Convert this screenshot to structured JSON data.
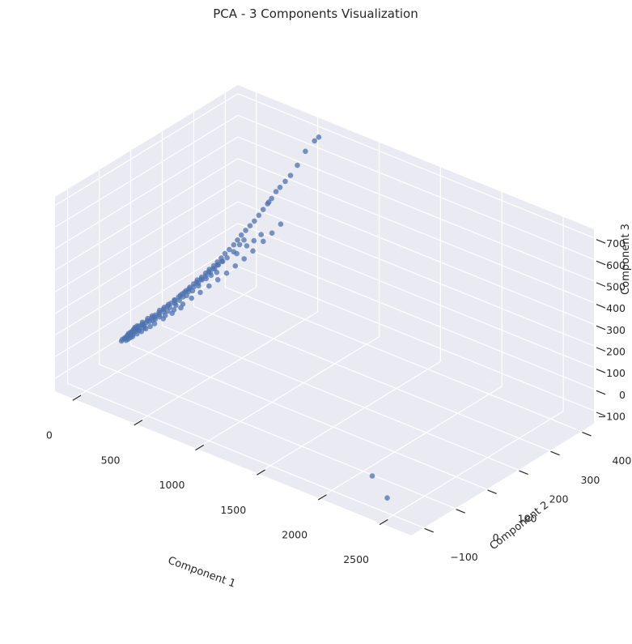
{
  "chart_data": {
    "type": "scatter",
    "projection": "3d",
    "title": "PCA - 3 Components Visualization",
    "xlabel": "Component 1",
    "ylabel": "Component 2",
    "zlabel": "Component 3",
    "xlim": [
      -150,
      2750
    ],
    "ylim": [
      -140,
      440
    ],
    "zlim": [
      -160,
      740
    ],
    "xticks": [
      0,
      500,
      1000,
      1500,
      2000,
      2500
    ],
    "yticks": [
      -100,
      0,
      100,
      200,
      300,
      400
    ],
    "zticks": [
      -100,
      0,
      100,
      200,
      300,
      400,
      500,
      600,
      700
    ],
    "xtick_labels": [
      "0",
      "500",
      "1000",
      "1500",
      "2000",
      "2500"
    ],
    "ytick_labels": [
      "−100",
      "0",
      "100",
      "200",
      "300",
      "400"
    ],
    "ztick_labels": [
      "−100",
      "0",
      "100",
      "200",
      "300",
      "400",
      "500",
      "600",
      "700"
    ],
    "grid": true,
    "style": "seaborn darkgrid",
    "colors": {
      "figure_background": "#ffffff",
      "pane_background": "#EAEAF2",
      "grid": "#ffffff",
      "point": "#4C72B0",
      "text": "#262626"
    },
    "points": [
      [
        -20,
        20,
        -40
      ],
      [
        -20,
        30,
        -35
      ],
      [
        -20,
        40,
        -30
      ],
      [
        -20,
        50,
        -25
      ],
      [
        -20,
        60,
        -20
      ],
      [
        -20,
        70,
        -15
      ],
      [
        -15,
        35,
        -30
      ],
      [
        -15,
        55,
        -20
      ],
      [
        -10,
        45,
        -25
      ],
      [
        -10,
        65,
        -18
      ],
      [
        -5,
        30,
        -32
      ],
      [
        -5,
        50,
        -22
      ],
      [
        -5,
        70,
        -12
      ],
      [
        0,
        40,
        -28
      ],
      [
        0,
        60,
        -18
      ],
      [
        0,
        80,
        -10
      ],
      [
        5,
        25,
        -36
      ],
      [
        5,
        55,
        -20
      ],
      [
        5,
        75,
        -8
      ],
      [
        10,
        45,
        -25
      ],
      [
        10,
        65,
        -15
      ],
      [
        10,
        90,
        -2
      ],
      [
        15,
        35,
        -30
      ],
      [
        15,
        85,
        -5
      ],
      [
        20,
        60,
        -18
      ],
      [
        20,
        100,
        5
      ],
      [
        25,
        75,
        -10
      ],
      [
        25,
        110,
        10
      ],
      [
        30,
        90,
        0
      ],
      [
        30,
        120,
        15
      ],
      [
        35,
        70,
        -12
      ],
      [
        35,
        105,
        8
      ],
      [
        40,
        95,
        3
      ],
      [
        40,
        130,
        22
      ],
      [
        45,
        115,
        12
      ],
      [
        45,
        140,
        28
      ],
      [
        50,
        100,
        6
      ],
      [
        50,
        150,
        35
      ],
      [
        55,
        125,
        18
      ],
      [
        55,
        160,
        40
      ],
      [
        60,
        110,
        10
      ],
      [
        60,
        170,
        48
      ],
      [
        65,
        140,
        28
      ],
      [
        65,
        180,
        55
      ],
      [
        70,
        155,
        35
      ],
      [
        70,
        190,
        62
      ],
      [
        75,
        130,
        22
      ],
      [
        75,
        200,
        70
      ],
      [
        80,
        165,
        42
      ],
      [
        80,
        210,
        78
      ],
      [
        85,
        175,
        50
      ],
      [
        85,
        220,
        88
      ],
      [
        90,
        150,
        34
      ],
      [
        90,
        190,
        62
      ],
      [
        95,
        205,
        72
      ],
      [
        95,
        230,
        95
      ],
      [
        100,
        180,
        55
      ],
      [
        100,
        240,
        105
      ],
      [
        105,
        215,
        82
      ],
      [
        105,
        250,
        115
      ],
      [
        110,
        195,
        66
      ],
      [
        110,
        225,
        90
      ],
      [
        115,
        260,
        125
      ],
      [
        115,
        235,
        100
      ],
      [
        120,
        210,
        78
      ],
      [
        120,
        270,
        135
      ],
      [
        125,
        245,
        110
      ],
      [
        125,
        280,
        145
      ],
      [
        130,
        230,
        96
      ],
      [
        130,
        290,
        158
      ],
      [
        135,
        255,
        120
      ],
      [
        140,
        300,
        170
      ],
      [
        140,
        265,
        130
      ],
      [
        145,
        240,
        106
      ],
      [
        150,
        310,
        185
      ],
      [
        150,
        275,
        140
      ],
      [
        155,
        320,
        200
      ],
      [
        160,
        285,
        150
      ],
      [
        160,
        330,
        215
      ],
      [
        165,
        250,
        115
      ],
      [
        170,
        340,
        230
      ],
      [
        175,
        300,
        168
      ],
      [
        180,
        350,
        245
      ],
      [
        185,
        315,
        190
      ],
      [
        190,
        360,
        260
      ],
      [
        195,
        325,
        205
      ],
      [
        200,
        370,
        280
      ],
      [
        210,
        380,
        300
      ],
      [
        220,
        390,
        320
      ],
      [
        10,
        30,
        -33
      ],
      [
        30,
        50,
        -22
      ],
      [
        50,
        70,
        -12
      ],
      [
        70,
        90,
        -2
      ],
      [
        90,
        110,
        8
      ],
      [
        110,
        130,
        20
      ],
      [
        130,
        150,
        32
      ],
      [
        20,
        40,
        -28
      ],
      [
        40,
        60,
        -18
      ],
      [
        60,
        80,
        -8
      ],
      [
        80,
        120,
        12
      ],
      [
        100,
        140,
        25
      ],
      [
        120,
        160,
        38
      ],
      [
        140,
        180,
        52
      ],
      [
        160,
        200,
        66
      ],
      [
        180,
        220,
        82
      ],
      [
        200,
        240,
        98
      ],
      [
        220,
        260,
        115
      ],
      [
        240,
        280,
        135
      ],
      [
        260,
        300,
        155
      ],
      [
        280,
        320,
        178
      ],
      [
        300,
        345,
        205
      ],
      [
        320,
        365,
        230
      ],
      [
        340,
        385,
        258
      ],
      [
        -25,
        25,
        -38
      ],
      [
        -25,
        45,
        -28
      ],
      [
        -25,
        65,
        -18
      ],
      [
        -12,
        28,
        -34
      ],
      [
        -8,
        82,
        -6
      ],
      [
        2,
        95,
        2
      ],
      [
        12,
        105,
        8
      ],
      [
        22,
        125,
        18
      ],
      [
        32,
        135,
        25
      ],
      [
        42,
        145,
        32
      ],
      [
        52,
        160,
        42
      ],
      [
        62,
        175,
        52
      ],
      [
        72,
        185,
        60
      ],
      [
        82,
        195,
        68
      ],
      [
        92,
        215,
        84
      ],
      [
        102,
        225,
        92
      ],
      [
        112,
        245,
        110
      ],
      [
        122,
        255,
        118
      ],
      [
        132,
        265,
        128
      ],
      [
        142,
        275,
        138
      ],
      [
        200,
        300,
        165
      ],
      [
        230,
        320,
        190
      ],
      [
        250,
        335,
        205
      ],
      [
        270,
        350,
        225
      ],
      [
        230,
        390,
        330
      ],
      [
        240,
        395,
        345
      ],
      [
        250,
        405,
        370
      ],
      [
        270,
        410,
        390
      ],
      [
        300,
        415,
        420
      ],
      [
        330,
        420,
        450
      ],
      [
        360,
        430,
        495
      ],
      [
        400,
        440,
        560
      ],
      [
        500,
        430,
        640
      ],
      [
        560,
        420,
        680
      ],
      [
        2100,
        -10,
        -150
      ],
      [
        2350,
        -60,
        -150
      ]
    ]
  }
}
